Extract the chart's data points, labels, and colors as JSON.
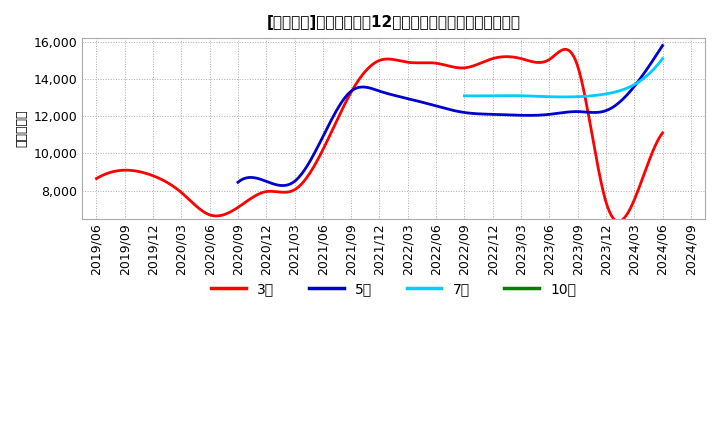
{
  "title": "[５１０１]　当期純利益12か月移動合計の標準偏差の推移",
  "ylabel": "（百万円）",
  "ylim": [
    6500,
    16200
  ],
  "yticks": [
    8000,
    10000,
    12000,
    14000,
    16000
  ],
  "background_color": "#ffffff",
  "plot_bg_color": "#ffffff",
  "grid_color": "#aaaaaa",
  "series": {
    "3year": {
      "color": "#ff0000",
      "label": "3年",
      "x": [
        "2019/06",
        "2019/09",
        "2019/12",
        "2020/03",
        "2020/06",
        "2020/09",
        "2020/12",
        "2021/03",
        "2021/06",
        "2021/09",
        "2021/12",
        "2022/03",
        "2022/06",
        "2022/09",
        "2022/12",
        "2023/03",
        "2023/06",
        "2023/09",
        "2023/12",
        "2024/03",
        "2024/06"
      ],
      "y": [
        8650,
        9100,
        8800,
        7900,
        6700,
        7100,
        7950,
        8050,
        10200,
        13300,
        15000,
        14900,
        14850,
        14600,
        15100,
        15100,
        15050,
        14700,
        7400,
        7500,
        11100
      ]
    },
    "5year": {
      "color": "#0000cc",
      "label": "5年",
      "x": [
        "2020/09",
        "2020/12",
        "2021/03",
        "2021/06",
        "2021/09",
        "2021/12",
        "2022/03",
        "2022/06",
        "2022/09",
        "2022/12",
        "2023/03",
        "2023/06",
        "2023/09",
        "2023/12",
        "2024/03",
        "2024/06"
      ],
      "y": [
        8450,
        8500,
        8500,
        10900,
        13350,
        13350,
        12950,
        12550,
        12200,
        12100,
        12050,
        12100,
        12250,
        12300,
        13600,
        15800
      ]
    },
    "7year": {
      "color": "#00ccff",
      "label": "7年",
      "x": [
        "2022/09",
        "2022/12",
        "2023/03",
        "2023/06",
        "2023/09",
        "2023/12",
        "2024/03",
        "2024/06"
      ],
      "y": [
        13100,
        13100,
        13100,
        13050,
        13050,
        13200,
        13700,
        15100
      ]
    },
    "10year": {
      "color": "#008000",
      "label": "10年",
      "x": [],
      "y": []
    }
  },
  "legend_entries": [
    "3年",
    "5年",
    "7年",
    "10年"
  ],
  "legend_colors": [
    "#ff0000",
    "#0000cc",
    "#00ccff",
    "#008000"
  ],
  "x_labels": [
    "2019/06",
    "2019/09",
    "2019/12",
    "2020/03",
    "2020/06",
    "2020/09",
    "2020/12",
    "2021/03",
    "2021/06",
    "2021/09",
    "2021/12",
    "2022/03",
    "2022/06",
    "2022/09",
    "2022/12",
    "2023/03",
    "2023/06",
    "2023/09",
    "2023/12",
    "2024/03",
    "2024/06",
    "2024/09"
  ]
}
